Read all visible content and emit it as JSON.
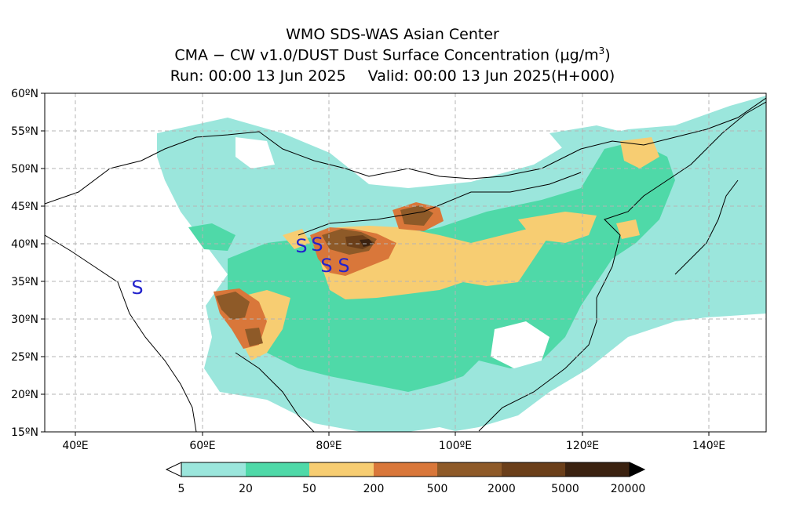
{
  "title": {
    "line1": "WMO SDS-WAS Asian Center",
    "line2": "CMA − CW v1.0/DUST Dust Surface Concentration (μg/m",
    "line2_sup": "3",
    "line2_end": ")",
    "run": "Run: 00:00 13 Jun 2025",
    "valid": "Valid: 00:00 13 Jun 2025(H+000)"
  },
  "map": {
    "lat_labels": [
      "60ºN",
      "55ºN",
      "50ºN",
      "45ºN",
      "40ºN",
      "35ºN",
      "30ºN",
      "25ºN",
      "20ºN",
      "15ºN"
    ],
    "lon_labels": [
      "40ºE",
      "60ºE",
      "80ºE",
      "100ºE",
      "120ºE",
      "140ºE"
    ],
    "station_marker": "S",
    "marker_color": "#2222cc"
  },
  "colorbar": {
    "labels": [
      "5",
      "20",
      "50",
      "200",
      "500",
      "2000",
      "5000",
      "20000"
    ],
    "colors": [
      "#9be6dc",
      "#4fd9a8",
      "#f7cd72",
      "#d9773a",
      "#8e5a28",
      "#6b3f1a",
      "#3b2210"
    ]
  }
}
